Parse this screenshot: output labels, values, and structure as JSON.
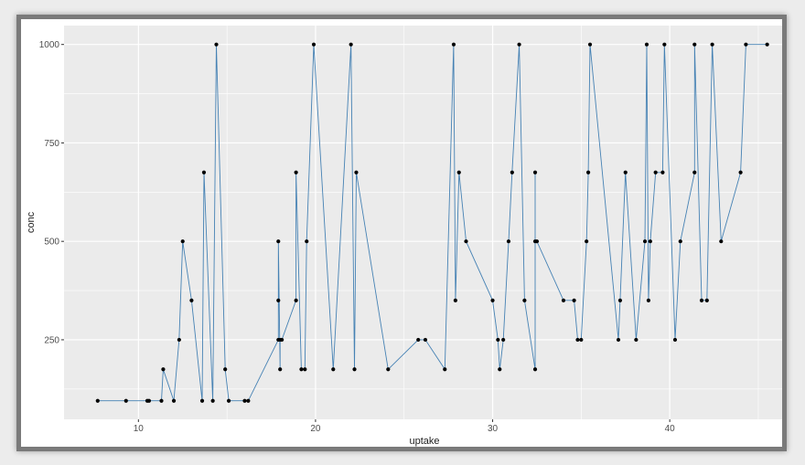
{
  "chart_data": {
    "type": "line",
    "xlabel": "uptake",
    "ylabel": "conc",
    "xlim": [
      5.8,
      46.5
    ],
    "ylim": [
      48,
      1048
    ],
    "x_ticks": [
      10,
      20,
      30,
      40
    ],
    "y_ticks": [
      250,
      500,
      750,
      1000
    ],
    "grid": true,
    "colors": {
      "line": "#4682b4",
      "point": "#000000",
      "panel": "#ebebeb",
      "grid": "#ffffff"
    },
    "points": [
      [
        7.7,
        95
      ],
      [
        9.3,
        95
      ],
      [
        10.5,
        95
      ],
      [
        10.6,
        95
      ],
      [
        11.3,
        95
      ],
      [
        11.4,
        175
      ],
      [
        12.0,
        95
      ],
      [
        12.3,
        250
      ],
      [
        12.5,
        500
      ],
      [
        13.0,
        350
      ],
      [
        13.6,
        95
      ],
      [
        13.7,
        675
      ],
      [
        14.2,
        95
      ],
      [
        14.4,
        1000
      ],
      [
        14.9,
        175
      ],
      [
        15.1,
        95
      ],
      [
        16.0,
        95
      ],
      [
        16.2,
        95
      ],
      [
        17.9,
        250
      ],
      [
        17.9,
        350
      ],
      [
        17.9,
        500
      ],
      [
        18.0,
        175
      ],
      [
        18.0,
        250
      ],
      [
        18.1,
        250
      ],
      [
        18.9,
        350
      ],
      [
        18.9,
        675
      ],
      [
        19.2,
        175
      ],
      [
        19.4,
        175
      ],
      [
        19.5,
        500
      ],
      [
        19.9,
        1000
      ],
      [
        21.0,
        175
      ],
      [
        22.0,
        1000
      ],
      [
        22.2,
        175
      ],
      [
        22.3,
        675
      ],
      [
        24.1,
        175
      ],
      [
        25.8,
        250
      ],
      [
        26.2,
        250
      ],
      [
        27.3,
        175
      ],
      [
        27.8,
        1000
      ],
      [
        27.9,
        350
      ],
      [
        28.1,
        675
      ],
      [
        28.5,
        500
      ],
      [
        30.0,
        350
      ],
      [
        30.3,
        250
      ],
      [
        30.4,
        175
      ],
      [
        30.6,
        250
      ],
      [
        30.9,
        500
      ],
      [
        31.1,
        675
      ],
      [
        31.5,
        1000
      ],
      [
        31.8,
        350
      ],
      [
        32.4,
        175
      ],
      [
        32.4,
        675
      ],
      [
        32.4,
        500
      ],
      [
        32.5,
        500
      ],
      [
        34.0,
        350
      ],
      [
        34.6,
        350
      ],
      [
        34.8,
        250
      ],
      [
        35.0,
        250
      ],
      [
        35.3,
        500
      ],
      [
        35.4,
        675
      ],
      [
        35.5,
        1000
      ],
      [
        37.1,
        250
      ],
      [
        37.2,
        350
      ],
      [
        37.5,
        675
      ],
      [
        38.1,
        250
      ],
      [
        38.6,
        500
      ],
      [
        38.7,
        1000
      ],
      [
        38.8,
        350
      ],
      [
        38.9,
        500
      ],
      [
        39.2,
        675
      ],
      [
        39.6,
        675
      ],
      [
        39.7,
        1000
      ],
      [
        40.3,
        250
      ],
      [
        40.6,
        500
      ],
      [
        41.4,
        675
      ],
      [
        41.4,
        1000
      ],
      [
        41.8,
        350
      ],
      [
        42.1,
        350
      ],
      [
        42.4,
        1000
      ],
      [
        42.9,
        500
      ],
      [
        44.0,
        675
      ],
      [
        44.3,
        1000
      ],
      [
        45.5,
        1000
      ]
    ]
  }
}
